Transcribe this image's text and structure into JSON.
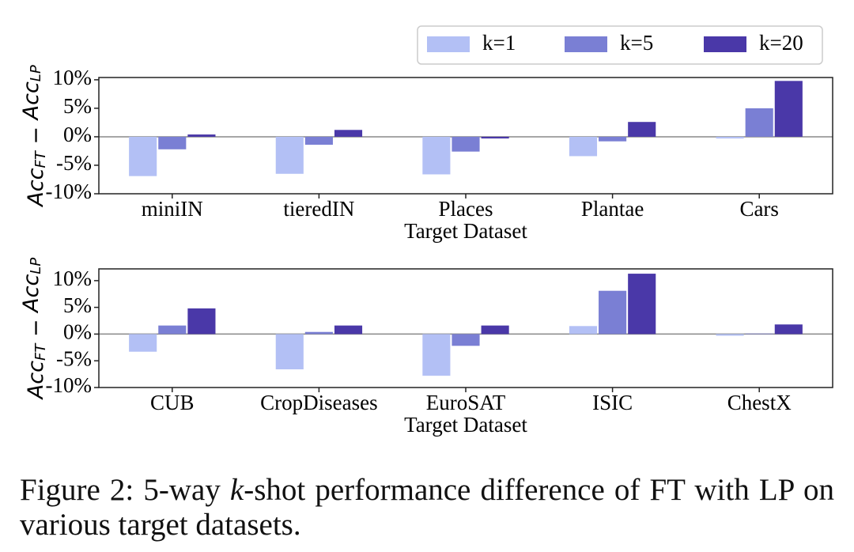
{
  "chart_data": [
    {
      "type": "bar",
      "categories": [
        "miniIN",
        "tieredIN",
        "Places",
        "Plantae",
        "Cars"
      ],
      "series": [
        {
          "name": "k=1",
          "color": "#b3c0f5",
          "values": [
            -6.9,
            -6.5,
            -6.6,
            -3.4,
            -0.3
          ]
        },
        {
          "name": "k=5",
          "color": "#7a7fd4",
          "values": [
            -2.2,
            -1.4,
            -2.6,
            -0.8,
            5.0
          ]
        },
        {
          "name": "k=20",
          "color": "#4a38a8",
          "values": [
            0.4,
            1.2,
            -0.3,
            2.6,
            9.8
          ]
        }
      ],
      "ylim": [
        -10,
        10.4
      ],
      "yticks": [
        {
          "value": 10,
          "label": "10%"
        },
        {
          "value": 5,
          "label": "5%"
        },
        {
          "value": 0,
          "label": "0%"
        },
        {
          "value": -5,
          "label": "-5%"
        },
        {
          "value": -10,
          "label": "-10%"
        }
      ],
      "xlabel": "Target Dataset",
      "ylabel": [
        "Acc",
        "FT",
        " − ",
        "Acc",
        "LP"
      ],
      "legend": "top right"
    },
    {
      "type": "bar",
      "categories": [
        "CUB",
        "CropDiseases",
        "EuroSAT",
        "ISIC",
        "ChestX"
      ],
      "series": [
        {
          "name": "k=1",
          "color": "#b3c0f5",
          "values": [
            -3.3,
            -6.6,
            -7.8,
            1.5,
            -0.3
          ]
        },
        {
          "name": "k=5",
          "color": "#7a7fd4",
          "values": [
            1.6,
            0.4,
            -2.2,
            8.1,
            0.1
          ]
        },
        {
          "name": "k=20",
          "color": "#4a38a8",
          "values": [
            4.8,
            1.6,
            1.6,
            11.3,
            1.8
          ]
        }
      ],
      "ylim": [
        -10,
        12.2
      ],
      "yticks": [
        {
          "value": 10,
          "label": "10%"
        },
        {
          "value": 5,
          "label": "5%"
        },
        {
          "value": 0,
          "label": "0%"
        },
        {
          "value": -5,
          "label": "-5%"
        },
        {
          "value": -10,
          "label": "-10%"
        }
      ],
      "xlabel": "Target Dataset",
      "ylabel": [
        "Acc",
        "FT",
        " − ",
        "Acc",
        "LP"
      ]
    }
  ],
  "caption": [
    "Figure 2: 5-way ",
    "k",
    "-shot performance difference of FT with LP on various target datasets."
  ]
}
